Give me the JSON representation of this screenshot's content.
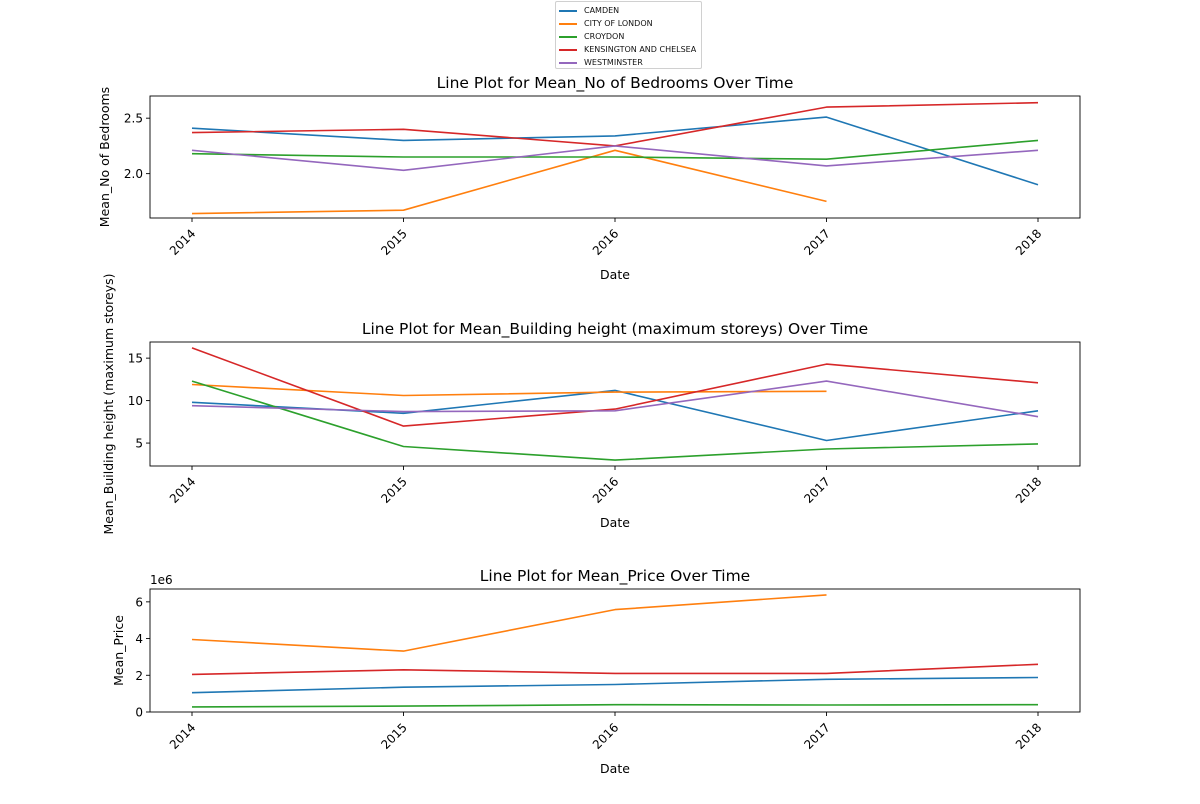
{
  "legend": {
    "placement": "top-center",
    "entries": [
      {
        "label": "CAMDEN",
        "color": "#1f77b4"
      },
      {
        "label": "CITY OF LONDON",
        "color": "#ff7f0e"
      },
      {
        "label": "CROYDON",
        "color": "#2ca02c"
      },
      {
        "label": "KENSINGTON AND CHELSEA",
        "color": "#d62728"
      },
      {
        "label": "WESTMINSTER",
        "color": "#9467bd"
      }
    ]
  },
  "chart_data": [
    {
      "type": "line",
      "title": "Line Plot for Mean_No of Bedrooms Over Time",
      "xlabel": "Date",
      "ylabel": "Mean_No of Bedrooms",
      "x": [
        "2014",
        "2015",
        "2016",
        "2017",
        "2018"
      ],
      "xticks": [
        "2014",
        "2015",
        "2016",
        "2017",
        "2018"
      ],
      "yticks": [
        2.0,
        2.5
      ],
      "ytick_labels": [
        "2.0",
        "2.5"
      ],
      "ylim": [
        1.6,
        2.7
      ],
      "offset_label": "",
      "grid": false,
      "series": [
        {
          "name": "CAMDEN",
          "color": "#1f77b4",
          "values": [
            2.41,
            2.3,
            2.34,
            2.51,
            1.9
          ]
        },
        {
          "name": "CITY OF LONDON",
          "color": "#ff7f0e",
          "values": [
            1.64,
            1.67,
            2.21,
            1.75,
            null
          ]
        },
        {
          "name": "CROYDON",
          "color": "#2ca02c",
          "values": [
            2.18,
            2.15,
            2.15,
            2.13,
            2.3
          ]
        },
        {
          "name": "KENSINGTON AND CHELSEA",
          "color": "#d62728",
          "values": [
            2.37,
            2.4,
            2.25,
            2.6,
            2.64
          ]
        },
        {
          "name": "WESTMINSTER",
          "color": "#9467bd",
          "values": [
            2.21,
            2.03,
            2.25,
            2.07,
            2.21
          ]
        }
      ]
    },
    {
      "type": "line",
      "title": "Line Plot for Mean_Building height (maximum storeys) Over Time",
      "xlabel": "Date",
      "ylabel": "Mean_Building height (maximum storeys)",
      "x": [
        "2014",
        "2015",
        "2016",
        "2017",
        "2018"
      ],
      "xticks": [
        "2014",
        "2015",
        "2016",
        "2017",
        "2018"
      ],
      "yticks": [
        5,
        10,
        15
      ],
      "ytick_labels": [
        "5",
        "10",
        "15"
      ],
      "ylim": [
        2.3,
        16.9
      ],
      "offset_label": "",
      "grid": false,
      "series": [
        {
          "name": "CAMDEN",
          "color": "#1f77b4",
          "values": [
            9.8,
            8.5,
            11.2,
            5.3,
            8.8
          ]
        },
        {
          "name": "CITY OF LONDON",
          "color": "#ff7f0e",
          "values": [
            11.9,
            10.6,
            11.0,
            11.1,
            null
          ]
        },
        {
          "name": "CROYDON",
          "color": "#2ca02c",
          "values": [
            12.3,
            4.6,
            3.0,
            4.3,
            4.9
          ]
        },
        {
          "name": "KENSINGTON AND CHELSEA",
          "color": "#d62728",
          "values": [
            16.2,
            7.0,
            9.0,
            14.3,
            12.1
          ]
        },
        {
          "name": "WESTMINSTER",
          "color": "#9467bd",
          "values": [
            9.4,
            8.7,
            8.8,
            12.3,
            8.1
          ]
        }
      ]
    },
    {
      "type": "line",
      "title": "Line Plot for Mean_Price Over Time",
      "xlabel": "Date",
      "ylabel": "Mean_Price",
      "x": [
        "2014",
        "2015",
        "2016",
        "2017",
        "2018"
      ],
      "xticks": [
        "2014",
        "2015",
        "2016",
        "2017",
        "2018"
      ],
      "yticks": [
        0,
        2000000,
        4000000,
        6000000
      ],
      "ytick_labels": [
        "0",
        "2",
        "4",
        "6"
      ],
      "ylim": [
        0,
        6700000
      ],
      "offset_label": "1e6",
      "grid": false,
      "series": [
        {
          "name": "CAMDEN",
          "color": "#1f77b4",
          "values": [
            1050000,
            1350000,
            1500000,
            1780000,
            1880000
          ]
        },
        {
          "name": "CITY OF LONDON",
          "color": "#ff7f0e",
          "values": [
            3950000,
            3320000,
            5580000,
            6380000,
            null
          ]
        },
        {
          "name": "CROYDON",
          "color": "#2ca02c",
          "values": [
            280000,
            320000,
            400000,
            380000,
            400000
          ]
        },
        {
          "name": "KENSINGTON AND CHELSEA",
          "color": "#d62728",
          "values": [
            2050000,
            2300000,
            2100000,
            2100000,
            2600000
          ]
        },
        {
          "name": "WESTMINSTER",
          "color": "#9467bd",
          "values": [
            null,
            null,
            null,
            null,
            null
          ]
        }
      ]
    }
  ]
}
